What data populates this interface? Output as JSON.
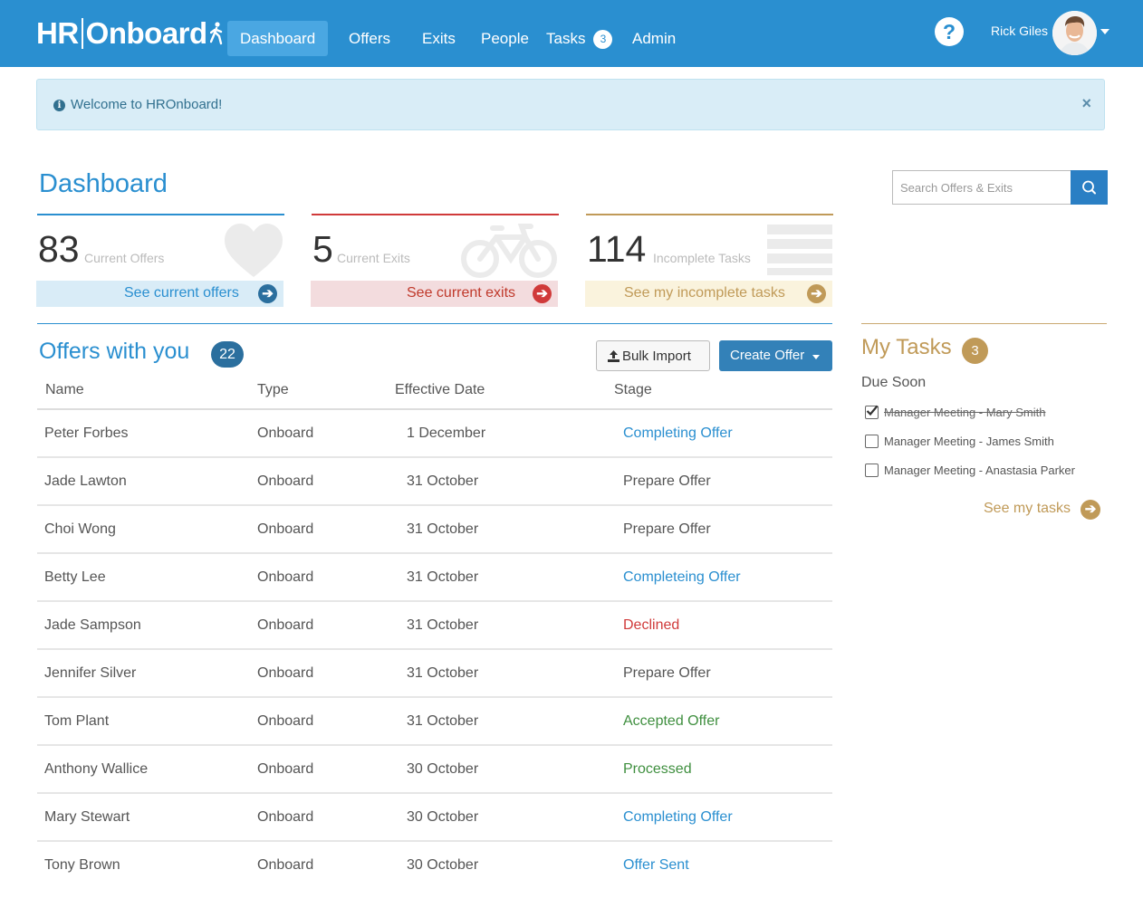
{
  "brand": {
    "logo_left": "HR",
    "logo_right": "Onboard"
  },
  "nav": {
    "items": [
      {
        "label": "Dashboard",
        "active": true
      },
      {
        "label": "Offers"
      },
      {
        "label": "Exits"
      },
      {
        "label": "People"
      },
      {
        "label": "Tasks",
        "badge": "3"
      },
      {
        "label": "Admin"
      }
    ],
    "help_label": "?",
    "user_name": "Rick Giles",
    "colors": {
      "bar": "#2a8fd0",
      "active": "#4aa7e2"
    }
  },
  "alert": {
    "text": "Welcome to HROnboard!",
    "icon": "info-icon",
    "close": "×"
  },
  "page": {
    "title": "Dashboard"
  },
  "search": {
    "placeholder": "Search Offers & Exits",
    "icon": "search-icon"
  },
  "stats": [
    {
      "value": "83",
      "label": "Current Offers",
      "link": "See current offers",
      "icon": "heart-icon",
      "color": "#2a8fd0",
      "tint": "#d9ecf7"
    },
    {
      "value": "5",
      "label": "Current Exits",
      "link": "See current exits",
      "icon": "bicycle-icon",
      "color": "#d03a3a",
      "tint": "#f3dcde"
    },
    {
      "value": "114",
      "label": "Incomplete Tasks",
      "link": "See my incomplete tasks",
      "icon": "list-icon",
      "color": "#c09a58",
      "tint": "#faf3dd"
    }
  ],
  "offers": {
    "title": "Offers with you",
    "count": "22",
    "bulk_import": "Bulk Import",
    "create_offer": "Create Offer",
    "columns": [
      "Name",
      "Type",
      "Effective Date",
      "Stage"
    ],
    "rows": [
      {
        "name": "Peter Forbes",
        "type": "Onboard",
        "date": "1 December",
        "stage": "Completing Offer",
        "stage_color": "blue"
      },
      {
        "name": "Jade Lawton",
        "type": "Onboard",
        "date": "31 October",
        "stage": "Prepare Offer",
        "stage_color": "gray"
      },
      {
        "name": "Choi Wong",
        "type": "Onboard",
        "date": "31 October",
        "stage": "Prepare Offer",
        "stage_color": "gray"
      },
      {
        "name": "Betty Lee",
        "type": "Onboard",
        "date": "31 October",
        "stage": "Completeing Offer",
        "stage_color": "blue"
      },
      {
        "name": "Jade Sampson",
        "type": "Onboard",
        "date": "31 October",
        "stage": "Declined",
        "stage_color": "red"
      },
      {
        "name": "Jennifer Silver",
        "type": "Onboard",
        "date": "31 October",
        "stage": "Prepare Offer",
        "stage_color": "gray"
      },
      {
        "name": "Tom Plant",
        "type": "Onboard",
        "date": "31 October",
        "stage": "Accepted Offer",
        "stage_color": "green"
      },
      {
        "name": "Anthony Wallice",
        "type": "Onboard",
        "date": "30 October",
        "stage": "Processed",
        "stage_color": "green"
      },
      {
        "name": "Mary Stewart",
        "type": "Onboard",
        "date": "30 October",
        "stage": "Completing Offer",
        "stage_color": "blue"
      },
      {
        "name": "Tony Brown",
        "type": "Onboard",
        "date": "30 October",
        "stage": "Offer Sent",
        "stage_color": "blue"
      }
    ]
  },
  "my_tasks": {
    "title": "My Tasks",
    "count": "3",
    "subtitle": "Due Soon",
    "items": [
      {
        "label": "Manager Meeting - Mary Smith",
        "done": true
      },
      {
        "label": "Manager Meeting - James Smith",
        "done": false
      },
      {
        "label": "Manager Meeting - Anastasia Parker",
        "done": false
      }
    ],
    "see_link": "See my tasks",
    "color": "#c09a58"
  }
}
